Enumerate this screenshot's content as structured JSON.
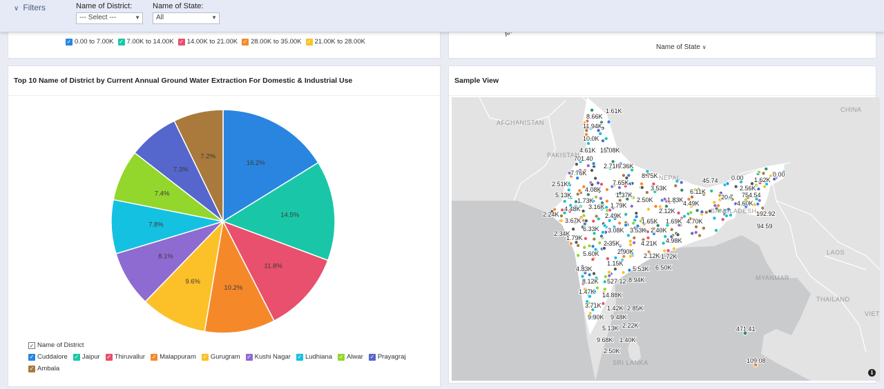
{
  "filters": {
    "toggle_label": "Filters",
    "district": {
      "label": "Name of District:",
      "value": "--- Select ---"
    },
    "state": {
      "label": "Name of State:",
      "value": "All"
    }
  },
  "top_left_card": {
    "legend": [
      {
        "label": "0.00 to 7.00K",
        "color": "#2a85e0"
      },
      {
        "label": "7.00K to 14.00K",
        "color": "#19c7a8"
      },
      {
        "label": "14.00K to 21.00K",
        "color": "#e8506d"
      },
      {
        "label": "28.00K to 35.00K",
        "color": "#f5892a"
      },
      {
        "label": "21.00K to 28.00K",
        "color": "#fcc128"
      }
    ]
  },
  "top_right_card": {
    "axis_label": "Name of State",
    "partial_label": "An"
  },
  "pie_card": {
    "title": "Top 10 Name of District by Current Annual Ground Water Extraction For Domestic & Industrial Use",
    "legend_title": "Name of District"
  },
  "chart_data": {
    "type": "pie",
    "title": "Top 10 Name of District by Current Annual Ground Water Extraction For Domestic & Industrial Use",
    "legend_title": "Name of District",
    "legend_placement": "bottom-left",
    "slices": [
      {
        "name": "Cuddalore",
        "value": 16.2,
        "label": "16.2%",
        "color": "#2a85e0"
      },
      {
        "name": "Jaipur",
        "value": 14.5,
        "label": "14.5%",
        "color": "#19c7a8"
      },
      {
        "name": "Thiruvallur",
        "value": 11.8,
        "label": "11.8%",
        "color": "#e8506d"
      },
      {
        "name": "Malappuram",
        "value": 10.2,
        "label": "10.2%",
        "color": "#f5892a"
      },
      {
        "name": "Gurugram",
        "value": 9.6,
        "label": "9.6%",
        "color": "#fcc128"
      },
      {
        "name": "Kushi Nagar",
        "value": 8.1,
        "label": "8.1%",
        "color": "#8e6bd1"
      },
      {
        "name": "Ludhiana",
        "value": 7.8,
        "label": "7.8%",
        "color": "#15c1e0"
      },
      {
        "name": "Alwar",
        "value": 7.4,
        "label": "7.4%",
        "color": "#93d62c"
      },
      {
        "name": "Prayagraj",
        "value": 7.3,
        "label": "7.3%",
        "color": "#5566cc"
      },
      {
        "name": "Ambala",
        "value": 7.2,
        "label": "7.2%",
        "color": "#a97a3c"
      }
    ]
  },
  "map_card": {
    "title": "Sample View",
    "info_icon": "info-icon",
    "country_labels": [
      {
        "name": "AFGHANISTAN"
      },
      {
        "name": "PAKISTAN"
      },
      {
        "name": "CHINA"
      },
      {
        "name": "NEPAL"
      },
      {
        "name": "BANGLADESH"
      },
      {
        "name": "MYANMAR"
      },
      {
        "name": "LAOS"
      },
      {
        "name": "THAILAND"
      },
      {
        "name": "VIET"
      },
      {
        "name": "SRI LANKA"
      }
    ],
    "value_labels": [
      "1.61K",
      "8.66K",
      "11.94K",
      "10.0K",
      "4.61K",
      "15.08K",
      "701.40",
      "2.71K",
      "9.36K",
      "7.76K",
      "8.75K",
      "45.74",
      "0.00",
      "0.00",
      "1.62K",
      "2.51K",
      "7.65K",
      "5.13K",
      "4.08K",
      "3.53K",
      "6.11K",
      "2.56K",
      "1.73K",
      "1.37K",
      "2.50K",
      "1.83K",
      "4.49K",
      "20.7",
      "754.54",
      "4.48K",
      "3.16K",
      "1.79K",
      "2.12K",
      "4.60K",
      "2.24K",
      "2.49K",
      "192.92",
      "3.67K",
      "1.65K",
      "1.69K",
      "4.70K",
      "94.59",
      "6.33K",
      "2.34K",
      "3.08K",
      "3.53K",
      "2.40K",
      "1.79K",
      "4.98K",
      "2.35K",
      "4.21K",
      "2.90K",
      "5.60K",
      "2.12K",
      "1.72K",
      "1.15K",
      "4.83K",
      "5.53K",
      "6.50K",
      "8.12K",
      "527.12",
      "8.94K",
      "1.47K",
      "14.88K",
      "3.71K",
      "1.42K",
      "2.85K",
      "9.90K",
      "9.48K",
      "5.13K",
      "2.22K",
      "9.68K",
      "1.40K",
      "2.50K",
      "471.41",
      "109.08"
    ]
  }
}
